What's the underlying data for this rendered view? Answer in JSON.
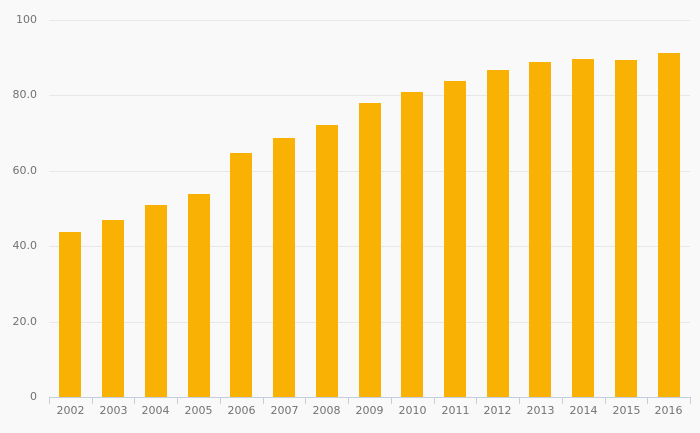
{
  "chart_data": {
    "type": "bar",
    "title": "",
    "xlabel": "",
    "ylabel": "",
    "categories": [
      "2002",
      "2003",
      "2004",
      "2005",
      "2006",
      "2007",
      "2008",
      "2009",
      "2010",
      "2011",
      "2012",
      "2013",
      "2014",
      "2015",
      "2016"
    ],
    "values": [
      43.8,
      47.0,
      50.9,
      53.8,
      64.8,
      68.7,
      72.1,
      77.9,
      81.0,
      83.9,
      86.7,
      88.8,
      89.6,
      89.4,
      91.3
    ],
    "ylim": [
      0,
      100
    ],
    "yticks": [
      {
        "value": 0,
        "label": "0"
      },
      {
        "value": 20,
        "label": "20.0"
      },
      {
        "value": 40,
        "label": "40.0"
      },
      {
        "value": 60,
        "label": "60.0"
      },
      {
        "value": 80,
        "label": "80.0"
      },
      {
        "value": 100,
        "label": "100"
      }
    ],
    "grid": true,
    "legend": false,
    "colors": {
      "bar": "#f9b104",
      "background": "#f9f9f9",
      "gridline": "#e8e8e8",
      "axis": "#c5cede",
      "label": "#737373"
    }
  }
}
